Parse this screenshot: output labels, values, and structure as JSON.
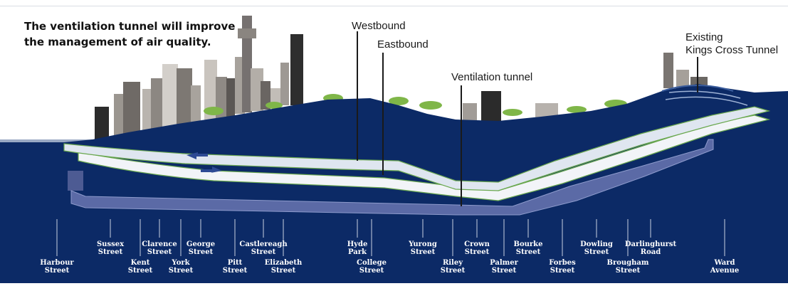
{
  "headline": {
    "line1": "The ventilation tunnel will improve",
    "line2": "the management of air quality."
  },
  "callouts": {
    "westbound": "Westbound",
    "eastbound": "Eastbound",
    "ventilation": "Ventilation tunnel",
    "existing_line1": "Existing",
    "existing_line2": "Kings Cross Tunnel"
  },
  "colors": {
    "ground": "#0c2a66",
    "sky_band": "#15356f",
    "tunnel_main": "#dfe6f0",
    "tunnel_vent": "#5b6aa6",
    "trees": "#7fb648",
    "buildings": "#8a8580"
  },
  "streets": [
    {
      "name": "Harbour\nStreet"
    },
    {
      "name": "Sussex\nStreet"
    },
    {
      "name": "Kent\nStreet"
    },
    {
      "name": "Clarence\nStreet"
    },
    {
      "name": "York\nStreet"
    },
    {
      "name": "George\nStreet"
    },
    {
      "name": "Pitt\nStreet"
    },
    {
      "name": "Castlereagh\nStreet"
    },
    {
      "name": "Elizabeth\nStreet"
    },
    {
      "name": "Hyde\nPark"
    },
    {
      "name": "College\nStreet"
    },
    {
      "name": "Yurong\nStreet"
    },
    {
      "name": "Riley\nStreet"
    },
    {
      "name": "Crown\nStreet"
    },
    {
      "name": "Palmer\nStreet"
    },
    {
      "name": "Bourke\nStreet"
    },
    {
      "name": "Forbes\nStreet"
    },
    {
      "name": "Dowling\nStreet"
    },
    {
      "name": "Brougham\nStreet"
    },
    {
      "name": "Darlinghurst\nRoad"
    },
    {
      "name": "Ward\nAvenue"
    }
  ]
}
